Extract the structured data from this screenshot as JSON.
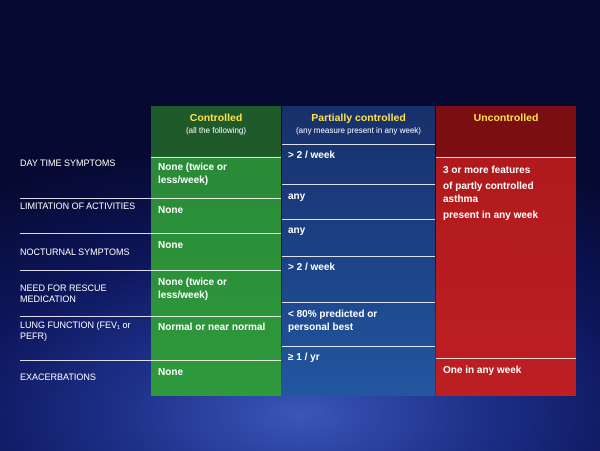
{
  "columns": {
    "controlled": {
      "title": "Controlled",
      "subtitle": "(all the following)"
    },
    "partial": {
      "title": "Partially controlled",
      "subtitle": "(any measure present in any week)"
    },
    "uncontrolled": {
      "title": "Uncontrolled"
    }
  },
  "rows": [
    {
      "label": "DAY TIME SYMPTOMS",
      "controlled": "None (twice or less/week)",
      "partial": "> 2 / week"
    },
    {
      "label": "LIMITATION OF ACTIVITIES",
      "controlled": "None",
      "partial": "any"
    },
    {
      "label": "NOCTURNAL SYMPTOMS",
      "controlled": "None",
      "partial": "any"
    },
    {
      "label": "NEED FOR RESCUE MEDICATION",
      "controlled": "None (twice or less/week)",
      "partial": "> 2 / week"
    },
    {
      "label": "LUNG FUNCTION (FEV₁ or PEFR)",
      "controlled": "Normal or near normal",
      "partial": "< 80% predicted or personal best"
    },
    {
      "label": "EXACERBATIONS",
      "controlled": "None",
      "partial": "≥ 1 / yr"
    }
  ],
  "uncontrolled_cells": {
    "main_line1": "3 or more features",
    "main_line2": "of partly controlled asthma",
    "main_line3": "present in any week",
    "exacerbations": "One in any week"
  },
  "colors": {
    "controlled_header": "#1f5a2a",
    "controlled_body": "#2e9a3c",
    "partial": "#1b3d80",
    "uncontrolled_header": "#7a0e10",
    "uncontrolled_body": "#bd1f22",
    "header_text": "#ffe24a"
  }
}
